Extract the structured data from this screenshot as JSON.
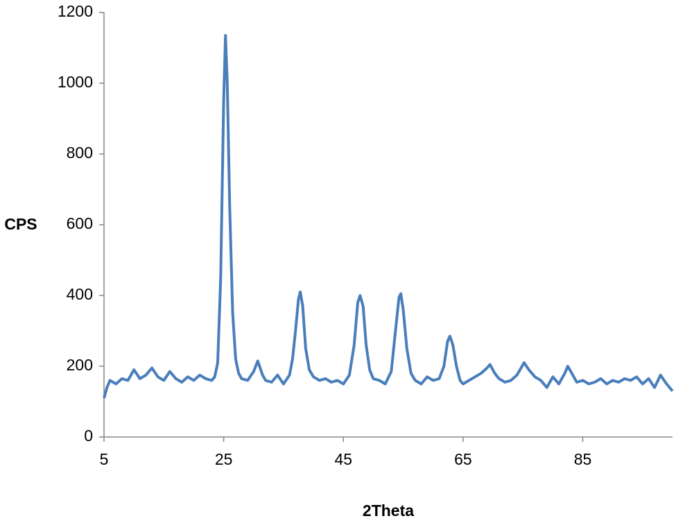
{
  "chart_data": {
    "type": "line",
    "xlabel": "2Theta",
    "ylabel": "CPS",
    "x": [
      5,
      5.5,
      6,
      7,
      8,
      9,
      10,
      11,
      12,
      13,
      14,
      15,
      16,
      17,
      18,
      19,
      20,
      21,
      22,
      23,
      23.5,
      24,
      24.5,
      25,
      25.3,
      25.6,
      26,
      26.5,
      27,
      27.5,
      28,
      29,
      30,
      30.7,
      31.5,
      32,
      33,
      34,
      35,
      36,
      36.5,
      37,
      37.5,
      37.8,
      38.2,
      38.7,
      39.3,
      40,
      41,
      42,
      43,
      44,
      45,
      46,
      46.8,
      47.4,
      47.8,
      48.3,
      48.8,
      49.4,
      50,
      51,
      52,
      53,
      53.7,
      54.3,
      54.6,
      55,
      55.6,
      56.3,
      57,
      58,
      59,
      60,
      61,
      61.8,
      62.4,
      62.8,
      63.3,
      63.9,
      64.5,
      65,
      66,
      67,
      68,
      69,
      69.5,
      70.3,
      71,
      72,
      73,
      74,
      75.2,
      76,
      77,
      78,
      79,
      80,
      81,
      82,
      82.5,
      83,
      84,
      85,
      86,
      87,
      88,
      89,
      90,
      91,
      92,
      93,
      94,
      95,
      96,
      97,
      98,
      99,
      100
    ],
    "series": [
      {
        "name": "CPS",
        "color": "#4a7ebb",
        "values": [
          110,
          140,
          160,
          150,
          165,
          160,
          190,
          165,
          175,
          195,
          170,
          160,
          185,
          165,
          155,
          170,
          160,
          175,
          165,
          160,
          170,
          210,
          450,
          950,
          1135,
          1000,
          650,
          350,
          220,
          180,
          165,
          160,
          185,
          215,
          175,
          160,
          155,
          175,
          150,
          175,
          220,
          300,
          390,
          410,
          370,
          250,
          190,
          170,
          160,
          165,
          155,
          160,
          150,
          175,
          260,
          380,
          400,
          370,
          260,
          190,
          165,
          160,
          150,
          185,
          300,
          395,
          405,
          360,
          250,
          180,
          160,
          150,
          170,
          160,
          165,
          200,
          270,
          285,
          260,
          200,
          160,
          150,
          160,
          170,
          180,
          195,
          205,
          180,
          165,
          155,
          160,
          175,
          210,
          190,
          170,
          160,
          140,
          170,
          150,
          180,
          200,
          185,
          155,
          160,
          150,
          155,
          165,
          150,
          160,
          155,
          165,
          160,
          170,
          150,
          165,
          140,
          175,
          150,
          130
        ]
      }
    ],
    "xlim": [
      5,
      100
    ],
    "ylim": [
      0,
      1200
    ],
    "xticks": [
      5,
      25,
      45,
      65,
      85
    ],
    "yticks": [
      0,
      200,
      400,
      600,
      800,
      1000,
      1200
    ]
  }
}
